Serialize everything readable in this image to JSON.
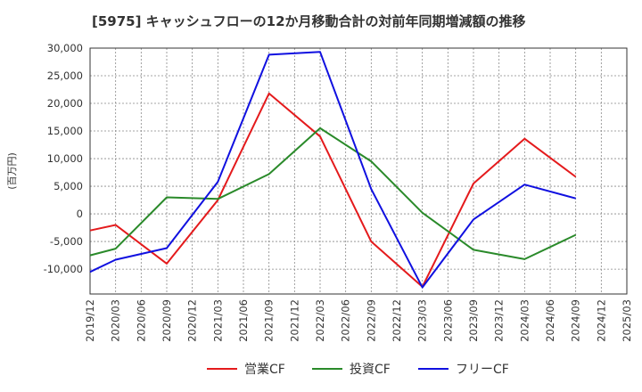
{
  "chart_data": {
    "type": "line",
    "title": "[5975]  キャッシュフローの12か月移動合計の対前年同期増減額の推移",
    "ylabel": "(百万円)",
    "xlabel": "",
    "ylim": [
      -14500,
      30000
    ],
    "yticks": [
      30000,
      25000,
      20000,
      15000,
      10000,
      5000,
      0,
      -5000,
      -10000
    ],
    "ytick_labels": [
      "30,000",
      "25,000",
      "20,000",
      "15,000",
      "10,000",
      "5,000",
      "0",
      "-5,000",
      "-10,000"
    ],
    "x_labels": [
      "2019/12",
      "2020/03",
      "2020/06",
      "2020/09",
      "2020/12",
      "2021/03",
      "2021/06",
      "2021/09",
      "2021/12",
      "2022/03",
      "2022/06",
      "2022/09",
      "2022/12",
      "2023/03",
      "2023/06",
      "2023/09",
      "2023/12",
      "2024/03",
      "2024/06",
      "2024/09",
      "2024/12",
      "2025/03"
    ],
    "grid": true,
    "legend_position": "bottom",
    "series": [
      {
        "name": "営業CF",
        "color": "#e41a1c",
        "points": [
          {
            "x": "2019/12",
            "y": -3000
          },
          {
            "x": "2020/03",
            "y": -2000
          },
          {
            "x": "2020/09",
            "y": -9000
          },
          {
            "x": "2021/03",
            "y": 2500
          },
          {
            "x": "2021/09",
            "y": 21800
          },
          {
            "x": "2022/03",
            "y": 14000
          },
          {
            "x": "2022/09",
            "y": -5000
          },
          {
            "x": "2023/03",
            "y": -13200
          },
          {
            "x": "2023/09",
            "y": 5500
          },
          {
            "x": "2024/03",
            "y": 13600
          },
          {
            "x": "2024/09",
            "y": 6700
          }
        ]
      },
      {
        "name": "投資CF",
        "color": "#2a8a2a",
        "points": [
          {
            "x": "2019/12",
            "y": -7500
          },
          {
            "x": "2020/03",
            "y": -6300
          },
          {
            "x": "2020/09",
            "y": 3000
          },
          {
            "x": "2021/03",
            "y": 2700
          },
          {
            "x": "2021/09",
            "y": 7200
          },
          {
            "x": "2022/03",
            "y": 15500
          },
          {
            "x": "2022/09",
            "y": 9500
          },
          {
            "x": "2023/03",
            "y": 200
          },
          {
            "x": "2023/09",
            "y": -6500
          },
          {
            "x": "2024/03",
            "y": -8200
          },
          {
            "x": "2024/09",
            "y": -3800
          }
        ]
      },
      {
        "name": "フリーCF",
        "color": "#1010e0",
        "points": [
          {
            "x": "2019/12",
            "y": -10500
          },
          {
            "x": "2020/03",
            "y": -8300
          },
          {
            "x": "2020/09",
            "y": -6200
          },
          {
            "x": "2021/03",
            "y": 5800
          },
          {
            "x": "2021/09",
            "y": 28800
          },
          {
            "x": "2022/03",
            "y": 29300
          },
          {
            "x": "2022/09",
            "y": 4500
          },
          {
            "x": "2023/03",
            "y": -13300
          },
          {
            "x": "2023/09",
            "y": -1000
          },
          {
            "x": "2024/03",
            "y": 5300
          },
          {
            "x": "2024/09",
            "y": 2800
          }
        ]
      }
    ]
  }
}
